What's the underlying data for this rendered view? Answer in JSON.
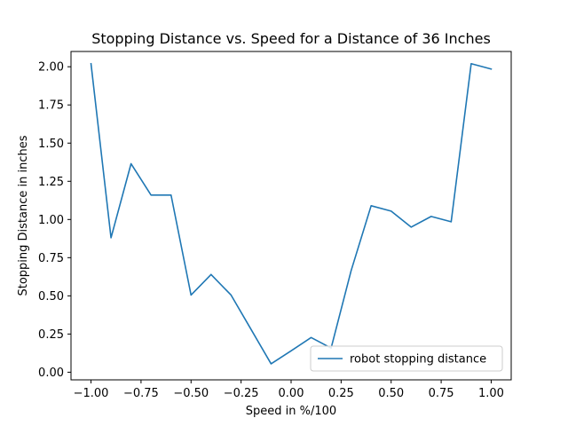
{
  "chart_data": {
    "type": "line",
    "title": "Stopping Distance vs. Speed for a Distance of 36 Inches",
    "xlabel": "Speed in %/100",
    "ylabel": "Stopping Distance in inches",
    "xlim": [
      -1.1,
      1.1
    ],
    "ylim": [
      -0.05,
      2.1
    ],
    "xticks": [
      -1.0,
      -0.75,
      -0.5,
      -0.25,
      0.0,
      0.25,
      0.5,
      0.75,
      1.0
    ],
    "xtick_labels": [
      "−1.00",
      "−0.75",
      "−0.50",
      "−0.25",
      "0.00",
      "0.25",
      "0.50",
      "0.75",
      "1.00"
    ],
    "yticks": [
      0.0,
      0.25,
      0.5,
      0.75,
      1.0,
      1.25,
      1.5,
      1.75,
      2.0
    ],
    "ytick_labels": [
      "0.00",
      "0.25",
      "0.50",
      "0.75",
      "1.00",
      "1.25",
      "1.50",
      "1.75",
      "2.00"
    ],
    "grid": false,
    "legend_position": "lower-right",
    "series": [
      {
        "name": "robot stopping distance",
        "color": "#1f77b4",
        "x": [
          -1.0,
          -0.9,
          -0.8,
          -0.7,
          -0.6,
          -0.5,
          -0.4,
          -0.3,
          -0.2,
          -0.1,
          0.0,
          0.1,
          0.2,
          0.3,
          0.4,
          0.5,
          0.6,
          0.7,
          0.8,
          0.9,
          1.0
        ],
        "y": [
          2.02,
          0.88,
          1.365,
          1.16,
          1.16,
          0.505,
          0.64,
          0.505,
          0.28,
          0.055,
          0.14,
          0.227,
          0.158,
          0.665,
          1.09,
          1.055,
          0.95,
          1.02,
          0.985,
          2.02,
          1.985
        ]
      }
    ]
  }
}
